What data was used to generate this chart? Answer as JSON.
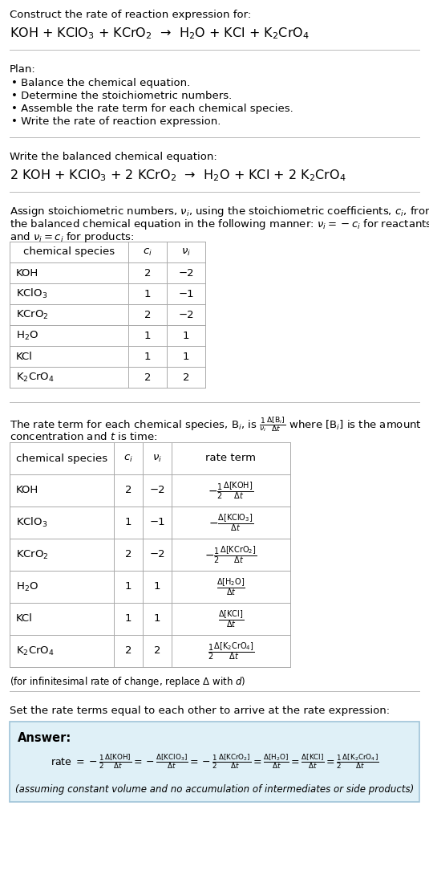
{
  "title_line1": "Construct the rate of reaction expression for:",
  "reaction_unbalanced": "KOH + KClO$_3$ + KCrO$_2$  →  H$_2$O + KCl + K$_2$CrO$_4$",
  "plan_header": "Plan:",
  "plan_items": [
    "• Balance the chemical equation.",
    "• Determine the stoichiometric numbers.",
    "• Assemble the rate term for each chemical species.",
    "• Write the rate of reaction expression."
  ],
  "balanced_header": "Write the balanced chemical equation:",
  "reaction_balanced": "2 KOH + KClO$_3$ + 2 KCrO$_2$  →  H$_2$O + KCl + 2 K$_2$CrO$_4$",
  "assign_text1": "Assign stoichiometric numbers, $\\nu_i$, using the stoichiometric coefficients, $c_i$, from",
  "assign_text2": "the balanced chemical equation in the following manner: $\\nu_i = -c_i$ for reactants",
  "assign_text3": "and $\\nu_i = c_i$ for products:",
  "table1_headers": [
    "chemical species",
    "$c_i$",
    "$\\nu_i$"
  ],
  "table1_rows": [
    [
      "KOH",
      "2",
      "−2"
    ],
    [
      "KClO$_3$",
      "1",
      "−1"
    ],
    [
      "KCrO$_2$",
      "2",
      "−2"
    ],
    [
      "H$_2$O",
      "1",
      "1"
    ],
    [
      "KCl",
      "1",
      "1"
    ],
    [
      "K$_2$CrO$_4$",
      "2",
      "2"
    ]
  ],
  "rate_text1": "The rate term for each chemical species, B$_i$, is $\\frac{1}{\\nu_i}\\frac{\\Delta[\\mathrm{B}_i]}{\\Delta t}$ where [B$_i$] is the amount",
  "rate_text2": "concentration and $t$ is time:",
  "table2_headers": [
    "chemical species",
    "$c_i$",
    "$\\nu_i$",
    "rate term"
  ],
  "table2_rows": [
    [
      "KOH",
      "2",
      "−2",
      "$-\\frac{1}{2}\\frac{\\Delta[\\mathrm{KOH}]}{\\Delta t}$"
    ],
    [
      "KClO$_3$",
      "1",
      "−1",
      "$-\\frac{\\Delta[\\mathrm{KClO_3}]}{\\Delta t}$"
    ],
    [
      "KCrO$_2$",
      "2",
      "−2",
      "$-\\frac{1}{2}\\frac{\\Delta[\\mathrm{KCrO_2}]}{\\Delta t}$"
    ],
    [
      "H$_2$O",
      "1",
      "1",
      "$\\frac{\\Delta[\\mathrm{H_2O}]}{\\Delta t}$"
    ],
    [
      "KCl",
      "1",
      "1",
      "$\\frac{\\Delta[\\mathrm{KCl}]}{\\Delta t}$"
    ],
    [
      "K$_2$CrO$_4$",
      "2",
      "2",
      "$\\frac{1}{2}\\frac{\\Delta[\\mathrm{K_2CrO_4}]}{\\Delta t}$"
    ]
  ],
  "infinitesimal_note": "(for infinitesimal rate of change, replace Δ with $d$)",
  "set_equal_text": "Set the rate terms equal to each other to arrive at the rate expression:",
  "answer_label": "Answer:",
  "answer_rate": "rate $= -\\frac{1}{2}\\frac{\\Delta[\\mathrm{KOH}]}{\\Delta t} = -\\frac{\\Delta[\\mathrm{KClO_3}]}{\\Delta t} = -\\frac{1}{2}\\frac{\\Delta[\\mathrm{KCrO_2}]}{\\Delta t} = \\frac{\\Delta[\\mathrm{H_2O}]}{\\Delta t} = \\frac{\\Delta[\\mathrm{KCl}]}{\\Delta t} = \\frac{1}{2}\\frac{\\Delta[\\mathrm{K_2CrO_4}]}{\\Delta t}$",
  "answer_note": "(assuming constant volume and no accumulation of intermediates or side products)",
  "bg_color": "#ffffff",
  "answer_bg_color": "#dff0f7",
  "answer_border_color": "#a0c4d8",
  "text_color": "#000000",
  "table_border_color": "#aaaaaa",
  "separator_color": "#bbbbbb",
  "font_size": 9.5,
  "small_font_size": 8.5,
  "fig_width": 5.35,
  "fig_height": 11.1,
  "dpi": 100
}
